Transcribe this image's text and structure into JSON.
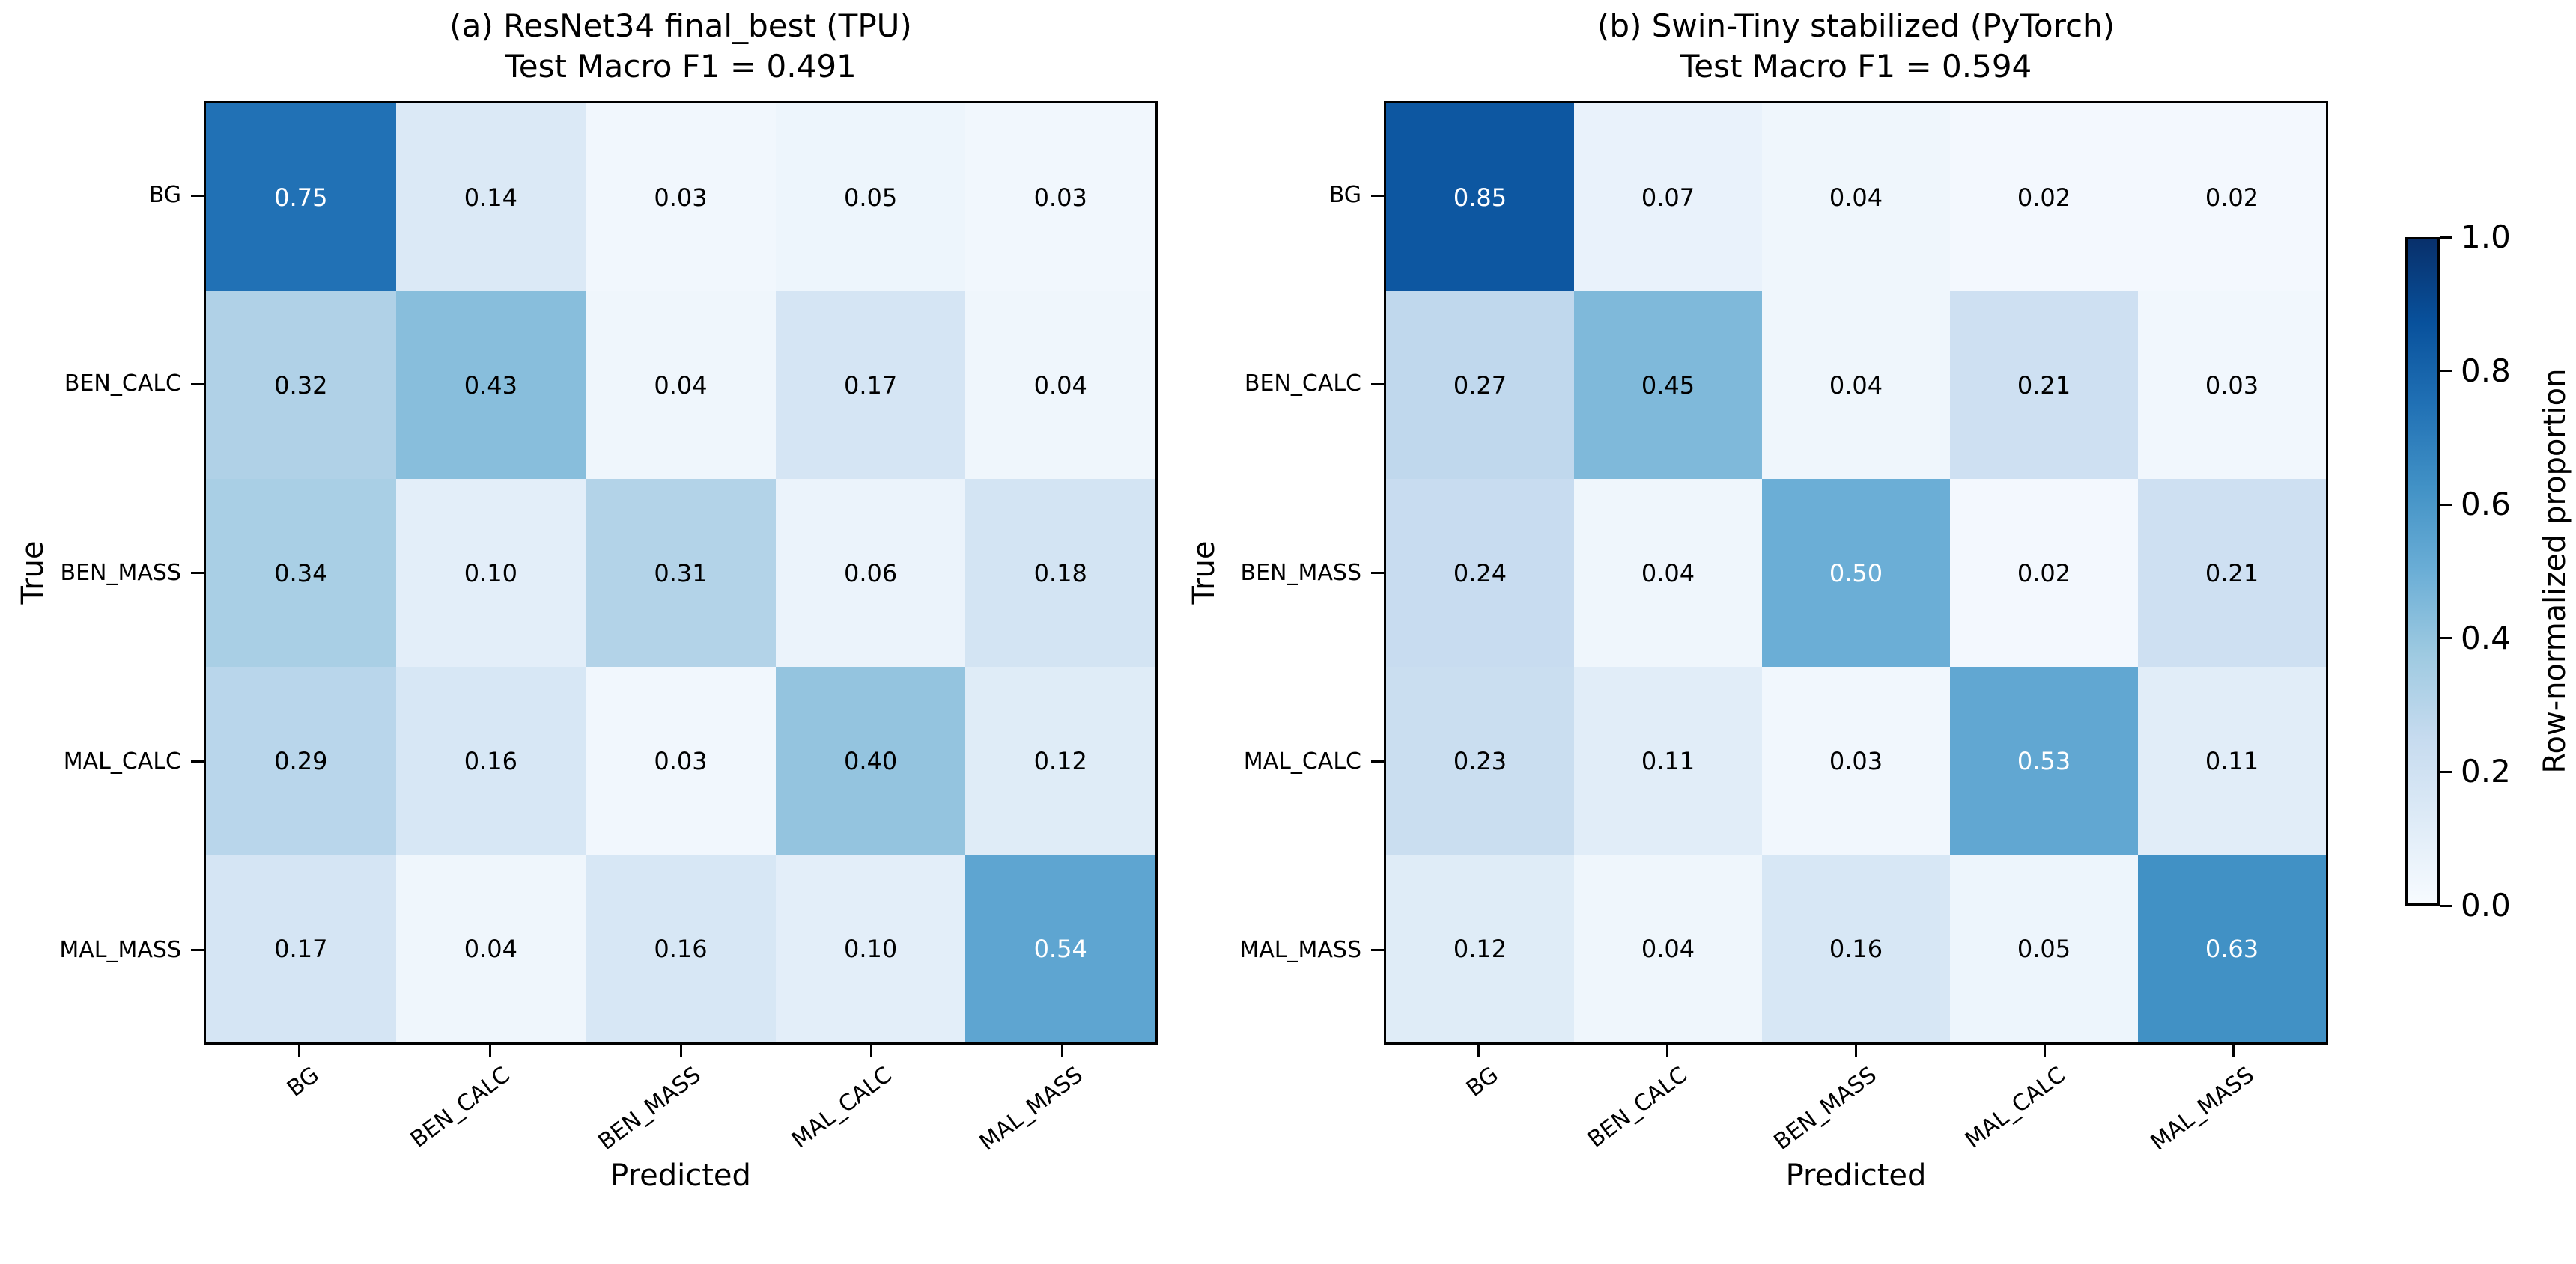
{
  "chart_data": [
    {
      "type": "heatmap",
      "title_line1": "(a) ResNet34 final_best (TPU)",
      "title_line2": "Test Macro F1 = 0.491",
      "xlabel": "Predicted",
      "ylabel": "True",
      "x_categories": [
        "BG",
        "BEN_CALC",
        "BEN_MASS",
        "MAL_CALC",
        "MAL_MASS"
      ],
      "y_categories": [
        "BG",
        "BEN_CALC",
        "BEN_MASS",
        "MAL_CALC",
        "MAL_MASS"
      ],
      "rows": [
        [
          0.75,
          0.14,
          0.03,
          0.05,
          0.03
        ],
        [
          0.32,
          0.43,
          0.04,
          0.17,
          0.04
        ],
        [
          0.34,
          0.1,
          0.31,
          0.06,
          0.18
        ],
        [
          0.29,
          0.16,
          0.03,
          0.4,
          0.12
        ],
        [
          0.17,
          0.04,
          0.16,
          0.1,
          0.54
        ]
      ],
      "vmin": 0,
      "vmax": 1
    },
    {
      "type": "heatmap",
      "title_line1": "(b) Swin-Tiny stabilized (PyTorch)",
      "title_line2": "Test Macro F1 = 0.594",
      "xlabel": "Predicted",
      "ylabel": "True",
      "x_categories": [
        "BG",
        "BEN_CALC",
        "BEN_MASS",
        "MAL_CALC",
        "MAL_MASS"
      ],
      "y_categories": [
        "BG",
        "BEN_CALC",
        "BEN_MASS",
        "MAL_CALC",
        "MAL_MASS"
      ],
      "rows": [
        [
          0.85,
          0.07,
          0.04,
          0.02,
          0.02
        ],
        [
          0.27,
          0.45,
          0.04,
          0.21,
          0.03
        ],
        [
          0.24,
          0.04,
          0.5,
          0.02,
          0.21
        ],
        [
          0.23,
          0.11,
          0.03,
          0.53,
          0.11
        ],
        [
          0.12,
          0.04,
          0.16,
          0.05,
          0.63
        ]
      ],
      "vmin": 0,
      "vmax": 1
    }
  ],
  "colorbar": {
    "label": "Row-normalized proportion",
    "tick_labels": [
      "0.0",
      "0.2",
      "0.4",
      "0.6",
      "0.8",
      "1.0"
    ],
    "tick_values": [
      0,
      0.2,
      0.4,
      0.6,
      0.8,
      1.0
    ],
    "cmap_name": "Blues",
    "cmap_anchors": [
      "#f7fbff",
      "#deebf7",
      "#c6dbef",
      "#9ecae1",
      "#6baed6",
      "#4292c6",
      "#2171b5",
      "#08519c",
      "#08306b"
    ]
  },
  "style": {
    "background": "#ffffff",
    "text_color": "#000000",
    "cell_text_light": "#ffffff",
    "white_text_threshold": 0.5
  }
}
